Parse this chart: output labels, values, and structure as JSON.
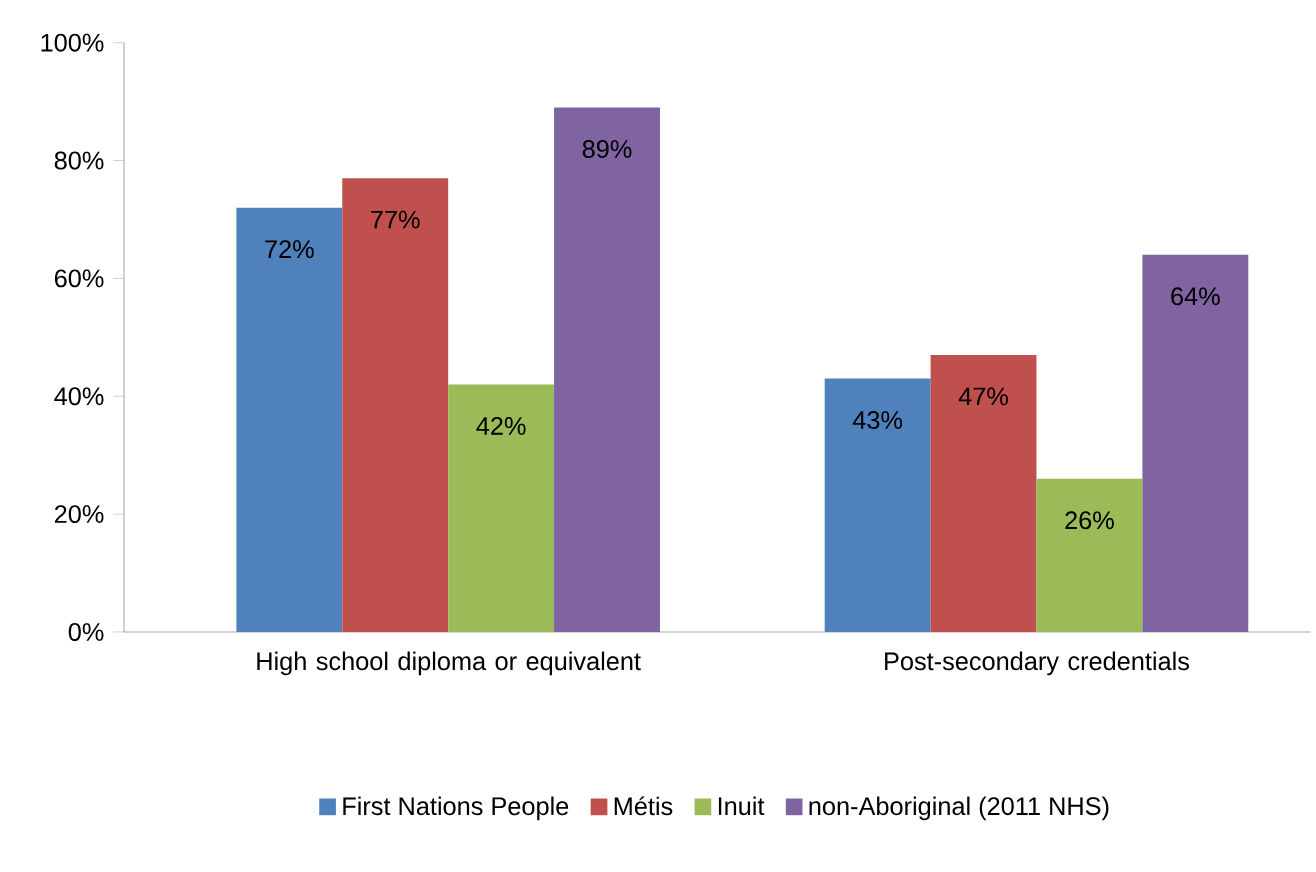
{
  "chart_data": {
    "type": "bar",
    "categories": [
      "High school diploma or equivalent",
      "Post-secondary credentials"
    ],
    "series": [
      {
        "name": "First Nations People",
        "color": "#4f81bd",
        "values": [
          72,
          43
        ],
        "value_labels": [
          "72%",
          "43%"
        ]
      },
      {
        "name": "Métis",
        "color": "#c0504d",
        "values": [
          77,
          47
        ],
        "value_labels": [
          "77%",
          "47%"
        ]
      },
      {
        "name": "Inuit",
        "color": "#9bbb59",
        "values": [
          42,
          26
        ],
        "value_labels": [
          "42%",
          "26%"
        ]
      },
      {
        "name": "non-Aboriginal (2011 NHS)",
        "color": "#8064a2",
        "values": [
          89,
          64
        ],
        "value_labels": [
          "89%",
          "64%"
        ]
      }
    ],
    "ylim": [
      0,
      100
    ],
    "yticks": [
      {
        "value": 0,
        "label": "0%"
      },
      {
        "value": 20,
        "label": "20%"
      },
      {
        "value": 40,
        "label": "40%"
      },
      {
        "value": 60,
        "label": "60%"
      },
      {
        "value": 80,
        "label": "80%"
      },
      {
        "value": 100,
        "label": "100%"
      }
    ],
    "legend": "bottom"
  }
}
